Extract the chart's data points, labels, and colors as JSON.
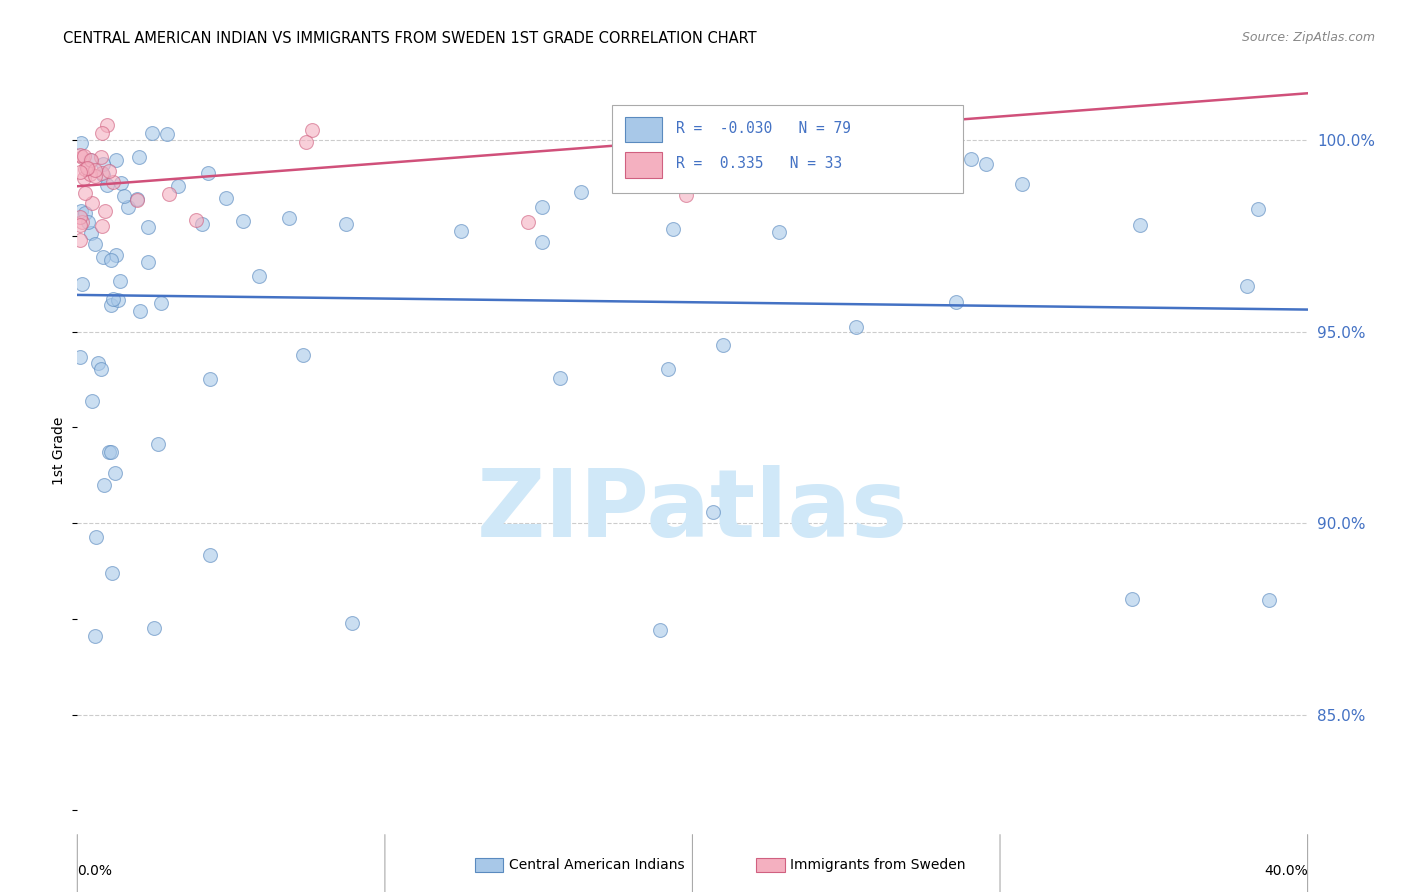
{
  "title": "CENTRAL AMERICAN INDIAN VS IMMIGRANTS FROM SWEDEN 1ST GRADE CORRELATION CHART",
  "source": "Source: ZipAtlas.com",
  "ylabel": "1st Grade",
  "y_ticks": [
    0.85,
    0.9,
    0.95,
    1.0
  ],
  "y_tick_labels": [
    "85.0%",
    "90.0%",
    "95.0%",
    "100.0%"
  ],
  "x_min": 0.0,
  "x_max": 0.4,
  "y_min": 0.82,
  "y_max": 1.018,
  "blue_R": -0.03,
  "blue_N": 79,
  "pink_R": 0.335,
  "pink_N": 33,
  "blue_color": "#a8c8e8",
  "pink_color": "#f4b0c0",
  "blue_edge_color": "#5a8abf",
  "pink_edge_color": "#d06080",
  "blue_line_color": "#4472c4",
  "pink_line_color": "#d0507a",
  "watermark_text": "ZIPatlas",
  "watermark_color": "#d0e8f8"
}
